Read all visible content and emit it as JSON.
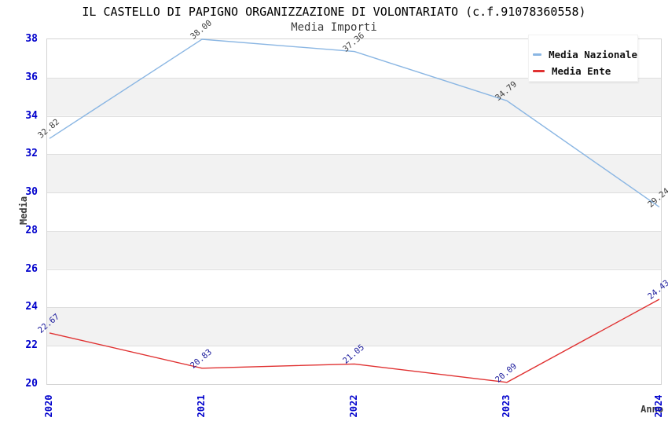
{
  "chart_data": {
    "type": "line",
    "title": "IL CASTELLO DI PAPIGNO ORGANIZZAZIONE DI VOLONTARIATO (c.f.91078360558)",
    "subtitle": "Media Importi",
    "xlabel": "Anno",
    "ylabel": "Media",
    "x": [
      "2020",
      "2021",
      "2022",
      "2023",
      "2024"
    ],
    "ylim": [
      20,
      38
    ],
    "ytick_step": 2,
    "grid": true,
    "legend_position": "top-right",
    "series": [
      {
        "name": "Media Nazionale",
        "color": "#8ab6e3",
        "label_color": "#3c3c3c",
        "values": [
          32.82,
          38.0,
          37.36,
          34.79,
          29.24
        ]
      },
      {
        "name": "Media Ente",
        "color": "#e03131",
        "label_color": "#1a1a9c",
        "values": [
          22.67,
          20.83,
          21.05,
          20.09,
          24.43
        ]
      }
    ],
    "colors": {
      "tick_label": "#0000cc",
      "band_gray": "#f2f2f2",
      "band_white": "#ffffff",
      "grid_line": "#dedede",
      "plot_border": "#d4d4d4"
    }
  }
}
